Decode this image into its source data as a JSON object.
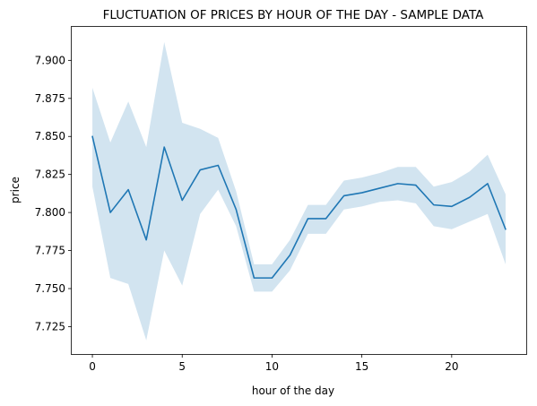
{
  "chart_data": {
    "type": "line",
    "title": "FLUCTUATION OF PRICES BY HOUR OF THE DAY - SAMPLE DATA",
    "xlabel": "hour of the day",
    "ylabel": "price",
    "xlim": [
      -1.15,
      24.15
    ],
    "ylim": [
      7.707,
      7.922
    ],
    "x_ticks": [
      0,
      5,
      10,
      15,
      20
    ],
    "x_tick_labels": [
      "0",
      "5",
      "10",
      "15",
      "20"
    ],
    "y_ticks": [
      7.725,
      7.75,
      7.775,
      7.8,
      7.825,
      7.85,
      7.875,
      7.9
    ],
    "y_tick_labels": [
      "7.725",
      "7.750",
      "7.775",
      "7.800",
      "7.825",
      "7.850",
      "7.875",
      "7.900"
    ],
    "grid": false,
    "legend": "none",
    "color": "#1f77b4",
    "series": [
      {
        "x": [
          0,
          1,
          2,
          3,
          4,
          5,
          6,
          7,
          8,
          9,
          10,
          11,
          12,
          13,
          14,
          15,
          16,
          17,
          18,
          19,
          20,
          21,
          22,
          23
        ],
        "values": [
          7.85,
          7.8,
          7.815,
          7.782,
          7.843,
          7.808,
          7.828,
          7.831,
          7.802,
          7.757,
          7.757,
          7.772,
          7.796,
          7.796,
          7.811,
          7.813,
          7.816,
          7.819,
          7.818,
          7.805,
          7.804,
          7.81,
          7.819,
          7.789
        ],
        "ci_lower": [
          7.817,
          7.757,
          7.753,
          7.716,
          7.775,
          7.752,
          7.799,
          7.815,
          7.791,
          7.748,
          7.748,
          7.762,
          7.786,
          7.786,
          7.802,
          7.804,
          7.807,
          7.808,
          7.806,
          7.791,
          7.789,
          7.794,
          7.799,
          7.766
        ],
        "ci_upper": [
          7.882,
          7.846,
          7.873,
          7.843,
          7.912,
          7.859,
          7.855,
          7.849,
          7.814,
          7.766,
          7.766,
          7.782,
          7.805,
          7.805,
          7.821,
          7.823,
          7.826,
          7.83,
          7.83,
          7.817,
          7.82,
          7.827,
          7.838,
          7.812
        ]
      }
    ]
  }
}
